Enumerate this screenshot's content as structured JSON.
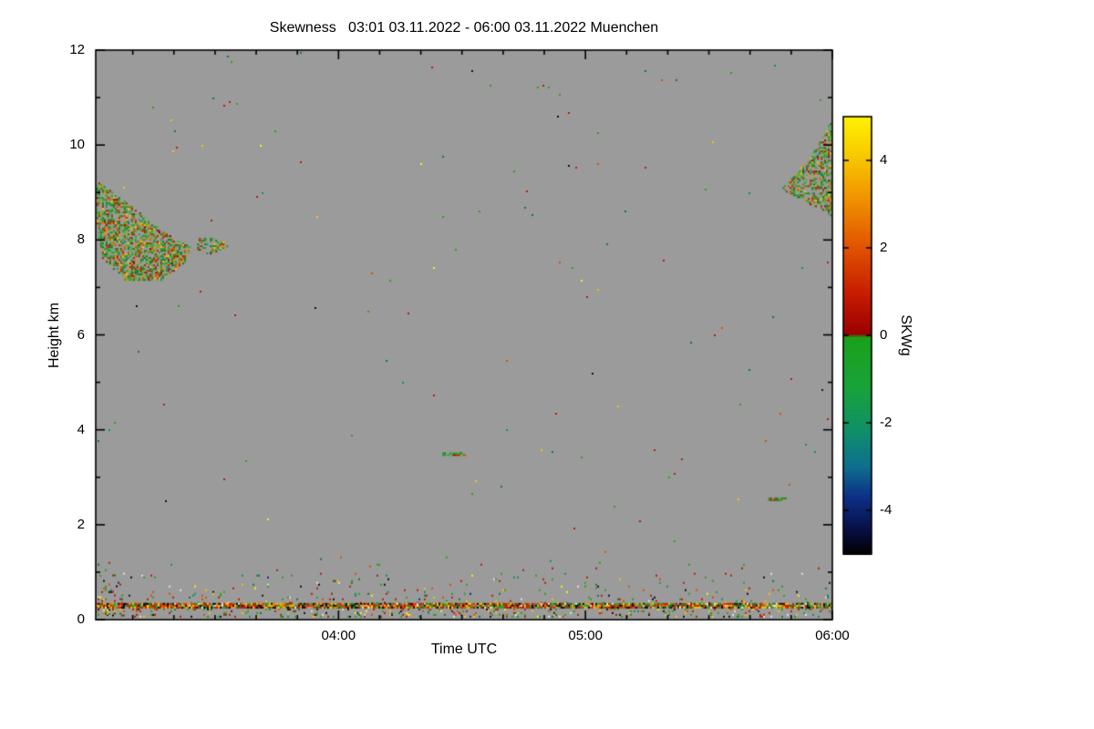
{
  "chart_data": {
    "type": "heatmap",
    "title": "Skewness   03:01 03.11.2022 - 06:00 03.11.2022 Muenchen",
    "xlabel": "Time UTC",
    "ylabel": "Height km",
    "x_range_hours": [
      3.0167,
      6.0
    ],
    "x_ticks": [
      {
        "hour": 4,
        "label": "04:00"
      },
      {
        "hour": 5,
        "label": "05:00"
      },
      {
        "hour": 6,
        "label": "06:00"
      }
    ],
    "x_minor_tick_minutes": 10,
    "y_range_km": [
      0,
      12
    ],
    "y_ticks": [
      0,
      2,
      4,
      6,
      8,
      10,
      12
    ],
    "y_minor_tick_km": 1,
    "background_color": "#9b9b9b",
    "frame_color": "#000000",
    "colorbar": {
      "label": "SKWg",
      "range": [
        -5,
        5
      ],
      "ticks": [
        4,
        2,
        0,
        -2,
        -4
      ],
      "stops": [
        [
          -5.0,
          "#000000"
        ],
        [
          -4.4,
          "#081148"
        ],
        [
          -3.7,
          "#0d2f86"
        ],
        [
          -3.0,
          "#0e6e8e"
        ],
        [
          -2.2,
          "#0f8f6a"
        ],
        [
          -1.2,
          "#18a33a"
        ],
        [
          -0.04,
          "#1aa11a"
        ],
        [
          0.04,
          "#9c0000"
        ],
        [
          1.0,
          "#c81e00"
        ],
        [
          2.0,
          "#e05200"
        ],
        [
          3.0,
          "#ef8b00"
        ],
        [
          4.0,
          "#f7c300"
        ],
        [
          5.0,
          "#fff200"
        ]
      ]
    },
    "palettes": {
      "cloud": [
        [
          "#2f9e1e",
          30
        ],
        [
          "#55b335",
          12
        ],
        [
          "#127a2a",
          14
        ],
        [
          "#b42000",
          16
        ],
        [
          "#d94f00",
          10
        ],
        [
          "#ef8b00",
          7
        ],
        [
          "#f7c300",
          4
        ],
        [
          "#0f8f6a",
          4
        ],
        [
          "#7c0f00",
          3
        ]
      ],
      "surface": [
        [
          "#2f9e1e",
          22
        ],
        [
          "#b42000",
          18
        ],
        [
          "#d94f00",
          10
        ],
        [
          "#f7c300",
          8
        ],
        [
          "#fff200",
          4
        ],
        [
          "#101010",
          10
        ],
        [
          "#0f8f6a",
          6
        ],
        [
          "#e0e0e0",
          6
        ],
        [
          "#127a2a",
          8
        ],
        [
          "#0d2f86",
          3
        ],
        [
          "#9b9b9b",
          5
        ]
      ],
      "clutter": [
        [
          "#b42000",
          24
        ],
        [
          "#ff2a00",
          10
        ],
        [
          "#2f9e1e",
          20
        ],
        [
          "#f7c300",
          12
        ],
        [
          "#050505",
          16
        ],
        [
          "#ef8b00",
          8
        ],
        [
          "#e8e8e8",
          4
        ],
        [
          "#127a2a",
          6
        ]
      ],
      "sparse": [
        [
          "#2f9e1e",
          26
        ],
        [
          "#b42000",
          20
        ],
        [
          "#d94f00",
          12
        ],
        [
          "#f7c300",
          10
        ],
        [
          "#127a2a",
          12
        ],
        [
          "#0f8f6a",
          8
        ],
        [
          "#101010",
          6
        ],
        [
          "#fff200",
          6
        ]
      ]
    },
    "features": [
      {
        "name": "cirrus-band-left",
        "shape": "polygon",
        "palette": "cloud",
        "density": 0.58,
        "points": [
          [
            3.02,
            9.25
          ],
          [
            3.1,
            8.98
          ],
          [
            3.22,
            8.45
          ],
          [
            3.33,
            8.05
          ],
          [
            3.4,
            7.88
          ],
          [
            3.37,
            7.5
          ],
          [
            3.28,
            7.17
          ],
          [
            3.13,
            7.17
          ],
          [
            3.04,
            7.62
          ],
          [
            3.02,
            8.3
          ]
        ]
      },
      {
        "name": "cirrus-fragment-left",
        "shape": "polygon",
        "palette": "cloud",
        "density": 0.5,
        "points": [
          [
            3.43,
            8.08
          ],
          [
            3.52,
            8.02
          ],
          [
            3.55,
            7.88
          ],
          [
            3.48,
            7.7
          ],
          [
            3.42,
            7.82
          ]
        ]
      },
      {
        "name": "cirrus-band-right",
        "shape": "polygon",
        "palette": "cloud",
        "density": 0.5,
        "points": [
          [
            5.79,
            9.1
          ],
          [
            5.85,
            9.4
          ],
          [
            5.91,
            9.8
          ],
          [
            5.97,
            10.3
          ],
          [
            6.0,
            10.65
          ],
          [
            6.0,
            8.5
          ],
          [
            5.94,
            8.68
          ],
          [
            5.86,
            8.9
          ]
        ]
      },
      {
        "name": "boundary-layer",
        "shape": "rect",
        "palette": "surface",
        "density": 0.055,
        "fade_top": true,
        "t": [
          3.0167,
          6.0
        ],
        "h": [
          0.35,
          1.6
        ]
      },
      {
        "name": "surface-layer",
        "shape": "rect",
        "palette": "surface",
        "density": 0.14,
        "t": [
          3.0167,
          6.0
        ],
        "h": [
          0.08,
          0.35
        ]
      },
      {
        "name": "left-edge-noise",
        "shape": "rect",
        "palette": "surface",
        "density": 0.22,
        "fade_top": true,
        "t": [
          3.0167,
          3.13
        ],
        "h": [
          0.1,
          1.45
        ]
      },
      {
        "name": "clutter-line",
        "shape": "line",
        "palette": "clutter",
        "density": 0.93,
        "t": [
          3.0167,
          6.0
        ],
        "h": 0.3,
        "thickness_km": 0.1
      },
      {
        "name": "free-troposphere-specks",
        "shape": "rect",
        "palette": "sparse",
        "density": 0.0012,
        "t": [
          3.0167,
          6.0
        ],
        "h": [
          1.6,
          12.0
        ]
      },
      {
        "name": "speck-dash-1",
        "shape": "line",
        "palette": "cloud",
        "density": 0.85,
        "t": [
          4.42,
          4.51
        ],
        "h": 3.5,
        "thickness_km": 0.05
      },
      {
        "name": "speck-dash-2",
        "shape": "line",
        "palette": "cloud",
        "density": 0.8,
        "t": [
          5.74,
          5.81
        ],
        "h": 2.55,
        "thickness_km": 0.05
      }
    ]
  }
}
